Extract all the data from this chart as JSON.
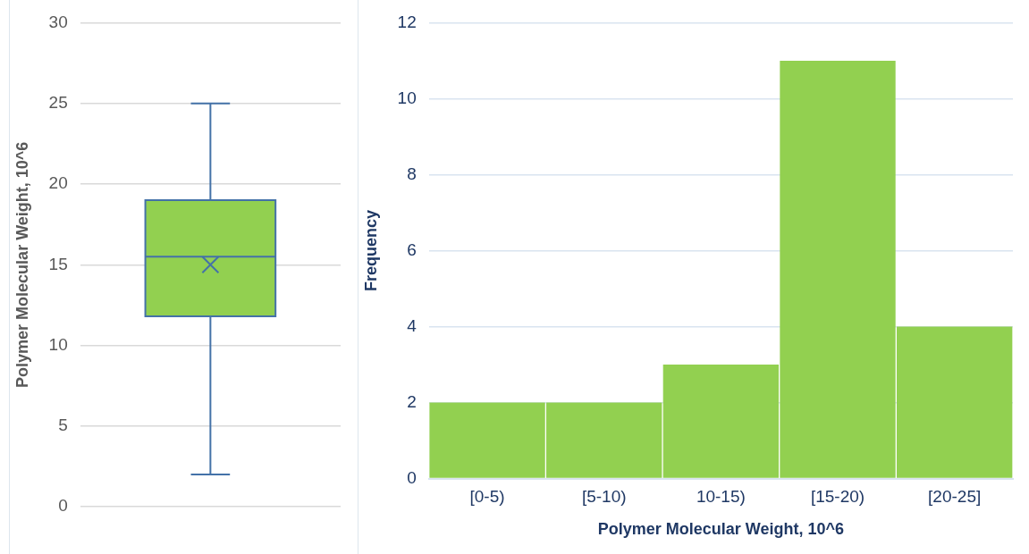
{
  "chart_data": [
    {
      "type": "box",
      "ylabel": "Polymer Molecular Weight, 10^6",
      "categories": [
        null
      ],
      "ylim": [
        0,
        30
      ],
      "yticks": [
        0,
        5,
        10,
        15,
        20,
        25,
        30
      ],
      "grid": "y",
      "color": "#92d050",
      "marker": "cross",
      "boxes": [
        {
          "low": 2,
          "q1": 11.8,
          "median": 15.5,
          "q3": 19,
          "high": 25,
          "mean": 15
        }
      ]
    },
    {
      "type": "bar",
      "xlabel": "Polymer Molecular Weight, 10^6",
      "ylabel": "Frequency",
      "categories": [
        "[0-5)",
        "[5-10)",
        "10-15)",
        "[15-20)",
        "[20-25]"
      ],
      "values": [
        2,
        2,
        3,
        11,
        4
      ],
      "color": "#92d050",
      "ylim": [
        0,
        12
      ],
      "yticks": [
        0,
        2,
        4,
        6,
        8,
        10,
        12
      ],
      "grid": "y"
    }
  ]
}
